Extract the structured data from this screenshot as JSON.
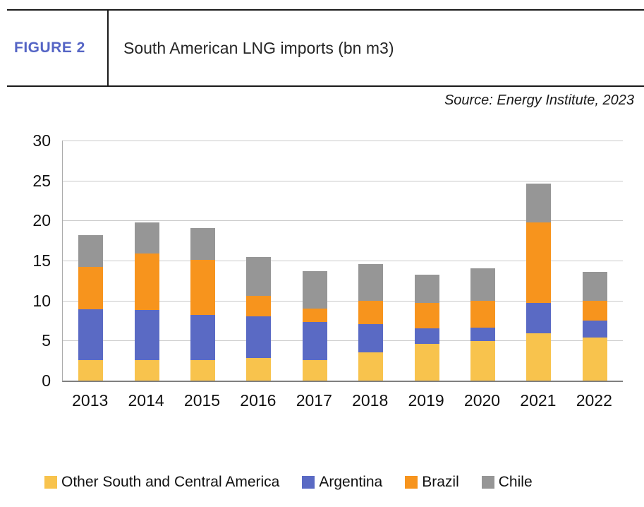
{
  "figure": {
    "label": "FIGURE 2",
    "title": "South American LNG imports (bn m3)",
    "source": "Source: Energy Institute, 2023"
  },
  "colors": {
    "figure_label": "#5565C5",
    "gridline": "#C9C9C9",
    "axis_bottom": "#7F7F7F",
    "axis_left": "#ABABAB",
    "header_rule": "#1a1a1a"
  },
  "chart_data": {
    "type": "bar",
    "stacked": true,
    "title": "South American LNG imports (bn m3)",
    "xlabel": "",
    "ylabel": "",
    "ylim": [
      0,
      30
    ],
    "yticks": [
      0,
      5,
      10,
      15,
      20,
      25,
      30
    ],
    "grid": true,
    "legend_position": "bottom",
    "categories": [
      "2013",
      "2014",
      "2015",
      "2016",
      "2017",
      "2018",
      "2019",
      "2020",
      "2021",
      "2022"
    ],
    "series": [
      {
        "name": "Other South and Central America",
        "color": "#F8C34D",
        "values": [
          2.6,
          2.6,
          2.6,
          2.8,
          2.6,
          3.5,
          4.6,
          4.9,
          5.9,
          5.4
        ]
      },
      {
        "name": "Argentina",
        "color": "#5A6AC4",
        "values": [
          6.3,
          6.2,
          5.6,
          5.2,
          4.7,
          3.6,
          1.9,
          1.7,
          3.8,
          2.1
        ]
      },
      {
        "name": "Brazil",
        "color": "#F7941D",
        "values": [
          5.3,
          7.1,
          6.9,
          2.6,
          1.7,
          2.9,
          3.2,
          3.4,
          10.1,
          2.5
        ]
      },
      {
        "name": "Chile",
        "color": "#969696",
        "values": [
          4.0,
          3.9,
          4.0,
          4.8,
          4.7,
          4.6,
          3.5,
          4.0,
          4.8,
          3.6
        ]
      }
    ],
    "totals": [
      18.2,
      19.8,
      19.1,
      15.4,
      13.7,
      14.6,
      13.2,
      14.0,
      24.6,
      13.6
    ]
  }
}
